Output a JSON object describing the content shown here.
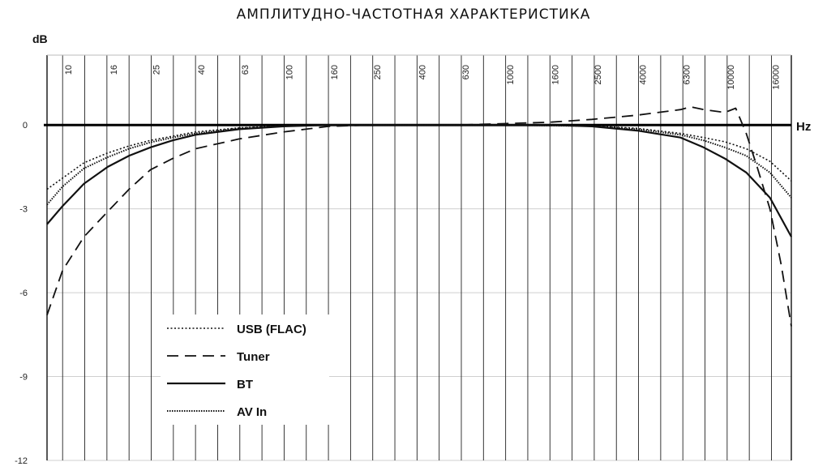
{
  "chart_data": {
    "type": "line",
    "title": "АМПЛИТУДНО-ЧАСТОТНАЯ ХАРАКТЕРИСТИКА",
    "xlabel": "Hz",
    "ylabel": "dB",
    "x_scale": "log",
    "xlim": [
      8.5,
      20000
    ],
    "ylim": [
      -12,
      2.5
    ],
    "x_ticks": [
      10,
      16,
      25,
      40,
      63,
      100,
      160,
      250,
      400,
      630,
      1000,
      1600,
      2500,
      4000,
      6300,
      10000,
      16000
    ],
    "y_ticks": [
      0,
      -3,
      -6,
      -9,
      -12
    ],
    "grid": true,
    "legend": {
      "position": "bottom-left",
      "entries": [
        "USB (FLAC)",
        "Tuner",
        "BT",
        "AV In"
      ]
    },
    "series": [
      {
        "name": "USB (FLAC)",
        "style": "dotted-fine",
        "color": "#111111",
        "points": [
          [
            8.5,
            -2.3
          ],
          [
            10,
            -1.9
          ],
          [
            12.5,
            -1.35
          ],
          [
            16,
            -1.0
          ],
          [
            20,
            -0.75
          ],
          [
            25,
            -0.55
          ],
          [
            31.5,
            -0.4
          ],
          [
            40,
            -0.25
          ],
          [
            63,
            -0.1
          ],
          [
            100,
            -0.03
          ],
          [
            160,
            0
          ],
          [
            1000,
            0
          ],
          [
            2500,
            -0.03
          ],
          [
            4000,
            -0.12
          ],
          [
            6300,
            -0.3
          ],
          [
            8000,
            -0.45
          ],
          [
            10000,
            -0.6
          ],
          [
            12500,
            -0.85
          ],
          [
            16000,
            -1.3
          ],
          [
            20000,
            -2.0
          ]
        ]
      },
      {
        "name": "Tuner",
        "style": "dashed",
        "color": "#111111",
        "points": [
          [
            8.5,
            -6.8
          ],
          [
            10,
            -5.2
          ],
          [
            12.5,
            -4.0
          ],
          [
            16,
            -3.1
          ],
          [
            20,
            -2.3
          ],
          [
            25,
            -1.6
          ],
          [
            31.5,
            -1.2
          ],
          [
            40,
            -0.85
          ],
          [
            63,
            -0.5
          ],
          [
            100,
            -0.25
          ],
          [
            160,
            -0.05
          ],
          [
            250,
            0
          ],
          [
            630,
            0
          ],
          [
            1000,
            0.05
          ],
          [
            1600,
            0.1
          ],
          [
            2500,
            0.2
          ],
          [
            4000,
            0.35
          ],
          [
            6300,
            0.55
          ],
          [
            7000,
            0.65
          ],
          [
            8000,
            0.55
          ],
          [
            10000,
            0.45
          ],
          [
            11200,
            0.6
          ],
          [
            12500,
            -0.3
          ],
          [
            14000,
            -1.5
          ],
          [
            16000,
            -3.0
          ],
          [
            18000,
            -5.0
          ],
          [
            20000,
            -7.2
          ]
        ]
      },
      {
        "name": "BT",
        "style": "solid",
        "color": "#111111",
        "points": [
          [
            8.5,
            -3.55
          ],
          [
            10,
            -2.9
          ],
          [
            12.5,
            -2.1
          ],
          [
            16,
            -1.5
          ],
          [
            20,
            -1.1
          ],
          [
            25,
            -0.8
          ],
          [
            31.5,
            -0.55
          ],
          [
            40,
            -0.35
          ],
          [
            63,
            -0.15
          ],
          [
            100,
            -0.05
          ],
          [
            160,
            0
          ],
          [
            1600,
            0
          ],
          [
            2500,
            -0.05
          ],
          [
            4000,
            -0.2
          ],
          [
            6300,
            -0.45
          ],
          [
            8000,
            -0.8
          ],
          [
            10000,
            -1.2
          ],
          [
            12500,
            -1.7
          ],
          [
            16000,
            -2.6
          ],
          [
            20000,
            -4.0
          ]
        ]
      },
      {
        "name": "AV In",
        "style": "dotted",
        "color": "#111111",
        "points": [
          [
            8.5,
            -2.85
          ],
          [
            10,
            -2.2
          ],
          [
            12.5,
            -1.55
          ],
          [
            16,
            -1.15
          ],
          [
            20,
            -0.85
          ],
          [
            25,
            -0.62
          ],
          [
            31.5,
            -0.45
          ],
          [
            40,
            -0.3
          ],
          [
            63,
            -0.12
          ],
          [
            100,
            -0.04
          ],
          [
            160,
            0
          ],
          [
            1000,
            0
          ],
          [
            2500,
            -0.04
          ],
          [
            4000,
            -0.15
          ],
          [
            6300,
            -0.35
          ],
          [
            8000,
            -0.55
          ],
          [
            10000,
            -0.8
          ],
          [
            12500,
            -1.1
          ],
          [
            16000,
            -1.7
          ],
          [
            20000,
            -2.6
          ]
        ]
      }
    ]
  }
}
